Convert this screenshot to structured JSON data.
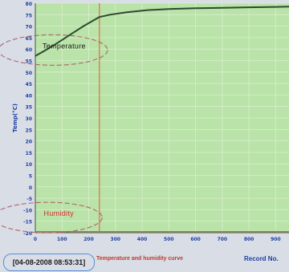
{
  "status_bar": {
    "datetime": "[04-08-2008 08:53:31]",
    "note": "Temperature and humidity curve"
  },
  "chart_data": {
    "type": "line",
    "title": "",
    "xlabel": "Record No.",
    "ylabel": "Temp(°C)",
    "x_ticks": [
      "0",
      "100",
      "200",
      "300",
      "400",
      "500",
      "600",
      "700",
      "800",
      "900"
    ],
    "y_ticks": [
      "-20",
      "-15",
      "-10",
      "-5",
      "0",
      "5",
      "10",
      "15",
      "20",
      "25",
      "30",
      "35",
      "40",
      "45",
      "50",
      "55",
      "60",
      "65",
      "70",
      "75",
      "80"
    ],
    "xlim": [
      0,
      950
    ],
    "ylim": [
      -20,
      80
    ],
    "grid": true,
    "marker_line_x": 240,
    "series": [
      {
        "name": "Temperature",
        "color": "#2e4a2e",
        "x": [
          0,
          30,
          60,
          100,
          140,
          180,
          210,
          240,
          280,
          340,
          420,
          500,
          600,
          700,
          800,
          900,
          950
        ],
        "y": [
          57,
          59,
          61,
          64,
          67,
          70,
          72,
          74,
          75,
          76,
          77,
          77.5,
          77.8,
          78,
          78.2,
          78.4,
          78.5
        ]
      },
      {
        "name": "Humidity",
        "color": "#e35a5a",
        "x": [
          0,
          100,
          200,
          240,
          300,
          400,
          500,
          600,
          700,
          800,
          900,
          950
        ],
        "y": [
          -19.5,
          -19.5,
          -19.5,
          -19.5,
          -19.5,
          -19.5,
          -19.5,
          -19.5,
          -19.5,
          -19.5,
          -19.5,
          -19.5
        ]
      }
    ],
    "annotations": [
      {
        "text": "Temperature",
        "color": "#1a1a1a",
        "x": 120,
        "y": 61
      },
      {
        "text": "Humidity",
        "color": "#d03030",
        "x": 100,
        "y": -12
      }
    ]
  },
  "colors": {
    "plot_bg": "#b9e3a8",
    "grid": "#dbeece",
    "frame": "#d8dde6",
    "axis_text": "#1f3fa0",
    "marker_line": "#e06a4a",
    "ellipse": "#b0646a"
  }
}
